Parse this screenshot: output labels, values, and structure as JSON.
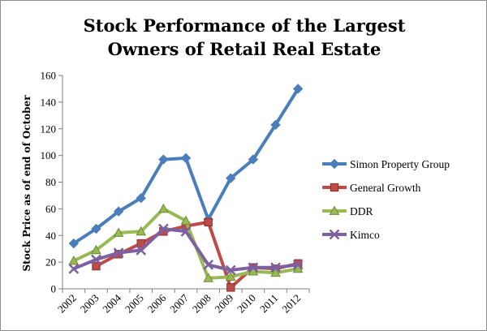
{
  "chart_data": {
    "type": "line",
    "title_lines": [
      "Stock Performance of the Largest",
      "Owners of Retail Real Estate"
    ],
    "ylabel": "Stock Price as of end of October",
    "xlabel": "",
    "x": [
      "2002",
      "2003",
      "2004",
      "2005",
      "2006",
      "2007",
      "2008",
      "2009",
      "2010",
      "2011",
      "2012"
    ],
    "ylim": [
      0,
      160
    ],
    "yticks": [
      0,
      20,
      40,
      60,
      80,
      100,
      120,
      140,
      160
    ],
    "grid": false,
    "legend": "right",
    "series": [
      {
        "name": "Simon Property Group",
        "color": "#4a7ebb",
        "marker": "diamond",
        "values": [
          34,
          45,
          58,
          68,
          97,
          98,
          52,
          83,
          97,
          123,
          150
        ]
      },
      {
        "name": "General Growth",
        "color": "#be4b48",
        "marker": "square",
        "values": [
          null,
          17,
          26,
          34,
          43,
          47,
          50,
          1,
          16,
          15,
          19
        ]
      },
      {
        "name": "DDR",
        "color": "#98b954",
        "marker": "triangle",
        "values": [
          21,
          29,
          42,
          43,
          60,
          51,
          8,
          9,
          13,
          12,
          15
        ]
      },
      {
        "name": "Kimco",
        "color": "#7d60a0",
        "marker": "x",
        "values": [
          15,
          22,
          27,
          29,
          45,
          43,
          18,
          14,
          16,
          16,
          18
        ]
      }
    ]
  }
}
